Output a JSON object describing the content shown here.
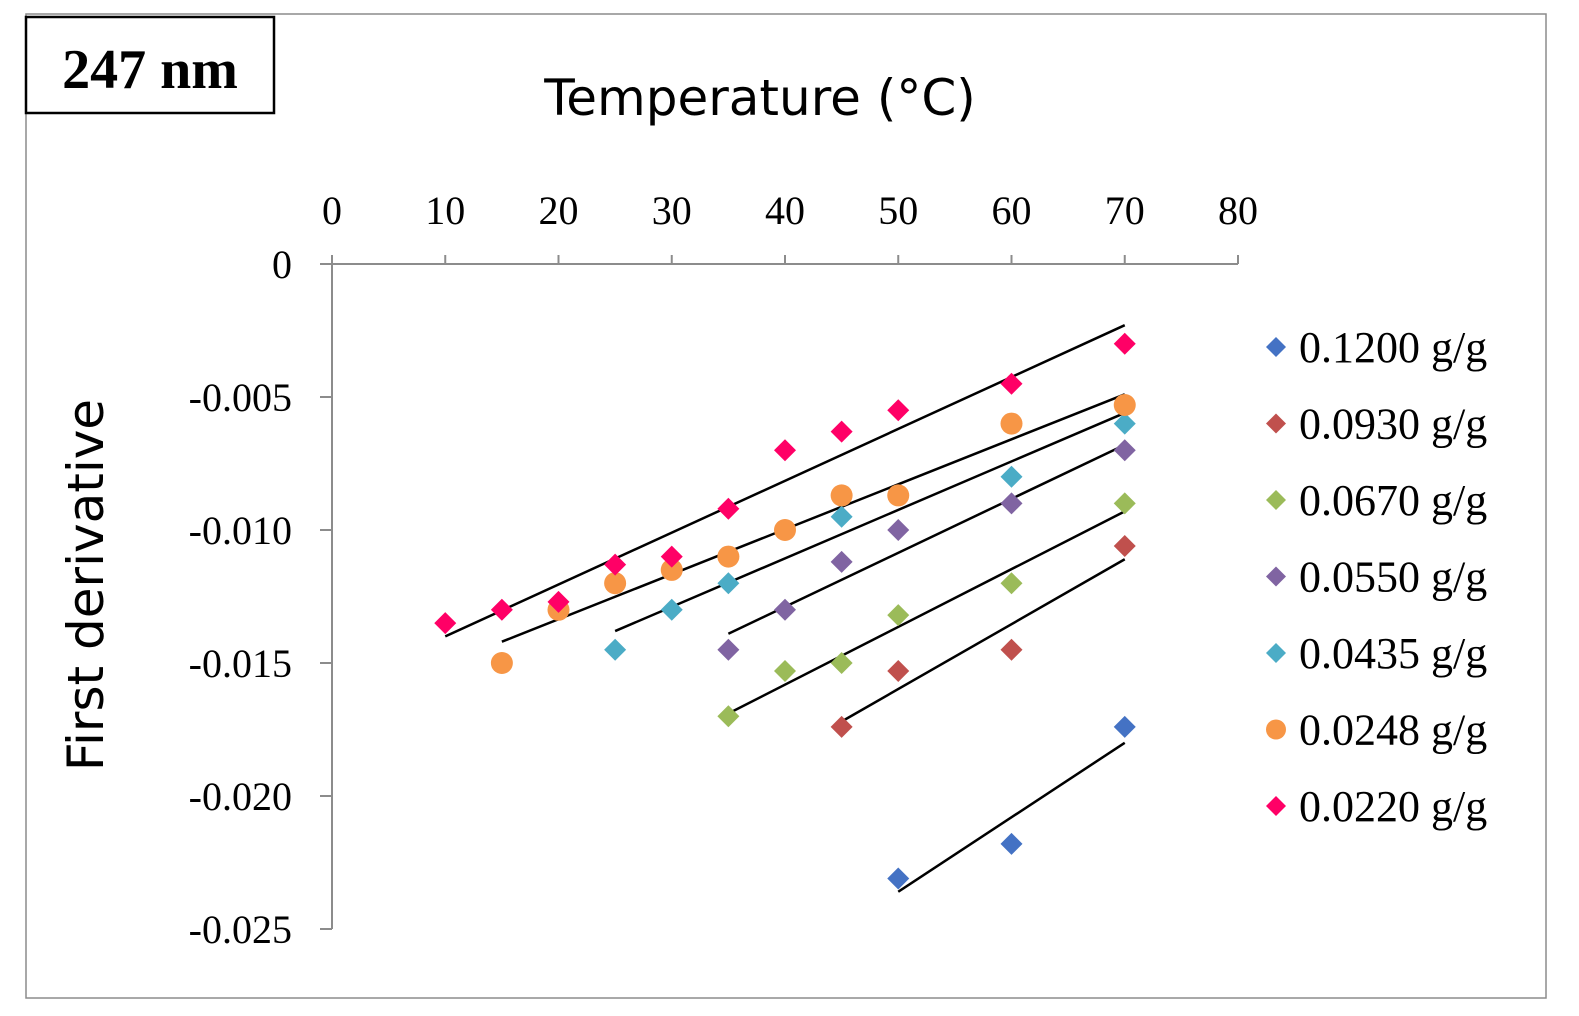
{
  "chart_data": {
    "type": "scatter",
    "title": "247 nm",
    "xlabel": "Temperature (°C)",
    "ylabel": "First derivative",
    "xlim": [
      0,
      80
    ],
    "ylim": [
      -0.025,
      0
    ],
    "x_ticks": [
      "0",
      "10",
      "20",
      "30",
      "40",
      "50",
      "60",
      "70",
      "80"
    ],
    "y_ticks": [
      "0",
      "-0.005",
      "-0.010",
      "-0.015",
      "-0.020",
      "-0.025"
    ],
    "x_axis_position": "top",
    "grid": false,
    "legend_position": "right",
    "series": [
      {
        "name": "0.1200 g/g",
        "marker": "diamond",
        "color": "#4472C4",
        "points": [
          [
            50,
            -0.0231
          ],
          [
            60,
            -0.0218
          ],
          [
            70,
            -0.0174
          ]
        ],
        "trend": [
          [
            50,
            -0.0236
          ],
          [
            70,
            -0.018
          ]
        ]
      },
      {
        "name": "0.0930 g/g",
        "marker": "diamond",
        "color": "#C0504D",
        "points": [
          [
            45,
            -0.0174
          ],
          [
            50,
            -0.0153
          ],
          [
            60,
            -0.0145
          ],
          [
            70,
            -0.0106
          ]
        ],
        "trend": [
          [
            45,
            -0.0172
          ],
          [
            70,
            -0.0111
          ]
        ]
      },
      {
        "name": "0.0670 g/g",
        "marker": "diamond",
        "color": "#9BBB59",
        "points": [
          [
            35,
            -0.017
          ],
          [
            40,
            -0.0153
          ],
          [
            45,
            -0.015
          ],
          [
            50,
            -0.0132
          ],
          [
            60,
            -0.012
          ],
          [
            70,
            -0.009
          ]
        ],
        "trend": [
          [
            35,
            -0.0169
          ],
          [
            70,
            -0.0093
          ]
        ]
      },
      {
        "name": "0.0550 g/g",
        "marker": "diamond",
        "color": "#8064A2",
        "points": [
          [
            35,
            -0.0145
          ],
          [
            40,
            -0.013
          ],
          [
            45,
            -0.0112
          ],
          [
            50,
            -0.01
          ],
          [
            60,
            -0.009
          ],
          [
            70,
            -0.007
          ]
        ],
        "trend": [
          [
            35,
            -0.0139
          ],
          [
            70,
            -0.0068
          ]
        ]
      },
      {
        "name": "0.0435 g/g",
        "marker": "diamond",
        "color": "#4BACC6",
        "points": [
          [
            25,
            -0.0145
          ],
          [
            30,
            -0.013
          ],
          [
            35,
            -0.012
          ],
          [
            45,
            -0.0095
          ],
          [
            60,
            -0.008
          ],
          [
            70,
            -0.006
          ]
        ],
        "trend": [
          [
            25,
            -0.0138
          ],
          [
            70,
            -0.0056
          ]
        ]
      },
      {
        "name": "0.0248 g/g",
        "marker": "circle",
        "color": "#F79646",
        "points": [
          [
            15,
            -0.015
          ],
          [
            20,
            -0.013
          ],
          [
            25,
            -0.012
          ],
          [
            30,
            -0.0115
          ],
          [
            35,
            -0.011
          ],
          [
            40,
            -0.01
          ],
          [
            45,
            -0.0087
          ],
          [
            50,
            -0.0087
          ],
          [
            60,
            -0.006
          ],
          [
            70,
            -0.0053
          ]
        ],
        "trend": [
          [
            15,
            -0.0142
          ],
          [
            70,
            -0.0049
          ]
        ]
      },
      {
        "name": "0.0220 g/g",
        "marker": "diamond",
        "color": "#FF0066",
        "points": [
          [
            10,
            -0.0135
          ],
          [
            15,
            -0.013
          ],
          [
            20,
            -0.0127
          ],
          [
            25,
            -0.0113
          ],
          [
            30,
            -0.011
          ],
          [
            35,
            -0.0092
          ],
          [
            40,
            -0.007
          ],
          [
            45,
            -0.0063
          ],
          [
            50,
            -0.0055
          ],
          [
            60,
            -0.0045
          ],
          [
            70,
            -0.003
          ]
        ],
        "trend": [
          [
            10,
            -0.014
          ],
          [
            70,
            -0.0023
          ]
        ]
      }
    ]
  }
}
